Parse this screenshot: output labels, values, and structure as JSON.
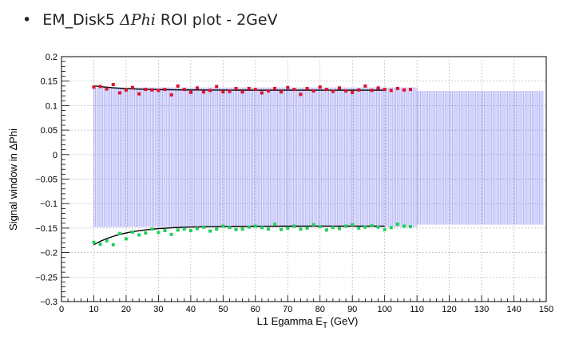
{
  "slide": {
    "bullet": "•",
    "title_prefix": "EM_Disk5 ",
    "title_math": "ΔPhi",
    "title_suffix": " ROI plot - 2GeV"
  },
  "chart_data": {
    "type": "scatter",
    "xlabel": "L1 Egamma E",
    "xlabel_sub": "T",
    "xlabel_unit": " (GeV)",
    "ylabel": "Signal window in ΔPhi",
    "xlim": [
      0,
      150
    ],
    "ylim": [
      -0.3,
      0.2
    ],
    "x_ticks": [
      0,
      10,
      20,
      30,
      40,
      50,
      60,
      70,
      80,
      90,
      100,
      110,
      120,
      130,
      140,
      150
    ],
    "y_ticks": [
      -0.3,
      -0.25,
      -0.2,
      -0.15,
      -0.1,
      -0.05,
      0,
      0.05,
      0.1,
      0.15,
      0.2
    ],
    "y_tick_labels": [
      "−0.3",
      "−0.25",
      "−0.2",
      "−0.15",
      "−0.1",
      "−0.05",
      "0",
      "0.05",
      "0.1",
      "0.15",
      "0.2"
    ],
    "grid": true,
    "colors": {
      "upper": "#e0102a",
      "lower": "#22d05a",
      "fit": "#000000",
      "band": "#3a3ae8"
    },
    "band": [
      {
        "x_from": 10,
        "x_to": 110,
        "upper": 0.137,
        "lower": -0.148
      },
      {
        "x_from": 110,
        "x_to": 149,
        "upper": 0.13,
        "lower": -0.143
      }
    ],
    "series": [
      {
        "color": "#e0102a",
        "x": [
          10,
          12,
          14,
          16,
          18,
          20,
          22,
          24,
          26,
          28,
          30,
          32,
          34,
          36,
          38,
          40,
          42,
          44,
          46,
          48,
          50,
          52,
          54,
          56,
          58,
          60,
          62,
          64,
          66,
          68,
          70,
          72,
          74,
          76,
          78,
          80,
          82,
          84,
          86,
          88,
          90,
          92,
          94,
          96,
          98,
          100,
          102,
          104,
          106,
          108
        ],
        "y": [
          0.138,
          0.139,
          0.134,
          0.143,
          0.126,
          0.132,
          0.137,
          0.124,
          0.133,
          0.132,
          0.131,
          0.133,
          0.122,
          0.14,
          0.133,
          0.127,
          0.136,
          0.128,
          0.131,
          0.139,
          0.128,
          0.129,
          0.135,
          0.128,
          0.135,
          0.133,
          0.126,
          0.13,
          0.135,
          0.128,
          0.137,
          0.133,
          0.123,
          0.135,
          0.13,
          0.138,
          0.133,
          0.129,
          0.136,
          0.13,
          0.127,
          0.132,
          0.14,
          0.131,
          0.136,
          0.133,
          0.131,
          0.135,
          0.132,
          0.133
        ]
      },
      {
        "color": "#22d05a",
        "x": [
          10,
          12,
          14,
          16,
          18,
          20,
          22,
          24,
          26,
          28,
          30,
          32,
          34,
          36,
          38,
          40,
          42,
          44,
          46,
          48,
          50,
          52,
          54,
          56,
          58,
          60,
          62,
          64,
          66,
          68,
          70,
          72,
          74,
          76,
          78,
          80,
          82,
          84,
          86,
          88,
          90,
          92,
          94,
          96,
          98,
          100,
          102,
          104,
          106,
          108
        ],
        "y": [
          -0.179,
          -0.183,
          -0.176,
          -0.184,
          -0.161,
          -0.172,
          -0.158,
          -0.164,
          -0.16,
          -0.152,
          -0.159,
          -0.155,
          -0.163,
          -0.154,
          -0.152,
          -0.155,
          -0.151,
          -0.148,
          -0.156,
          -0.152,
          -0.146,
          -0.149,
          -0.153,
          -0.152,
          -0.148,
          -0.146,
          -0.149,
          -0.152,
          -0.142,
          -0.153,
          -0.15,
          -0.146,
          -0.152,
          -0.15,
          -0.143,
          -0.147,
          -0.154,
          -0.149,
          -0.151,
          -0.146,
          -0.143,
          -0.15,
          -0.148,
          -0.145,
          -0.148,
          -0.153,
          -0.149,
          -0.142,
          -0.146,
          -0.147
        ]
      }
    ],
    "fit_upper": {
      "x_from": 10,
      "x_to": 100,
      "a": 0.1315,
      "b": 0.009,
      "c": 10
    },
    "fit_lower": {
      "x_from": 10,
      "x_to": 100,
      "a": -0.146,
      "b": -0.038,
      "c": 10
    }
  }
}
